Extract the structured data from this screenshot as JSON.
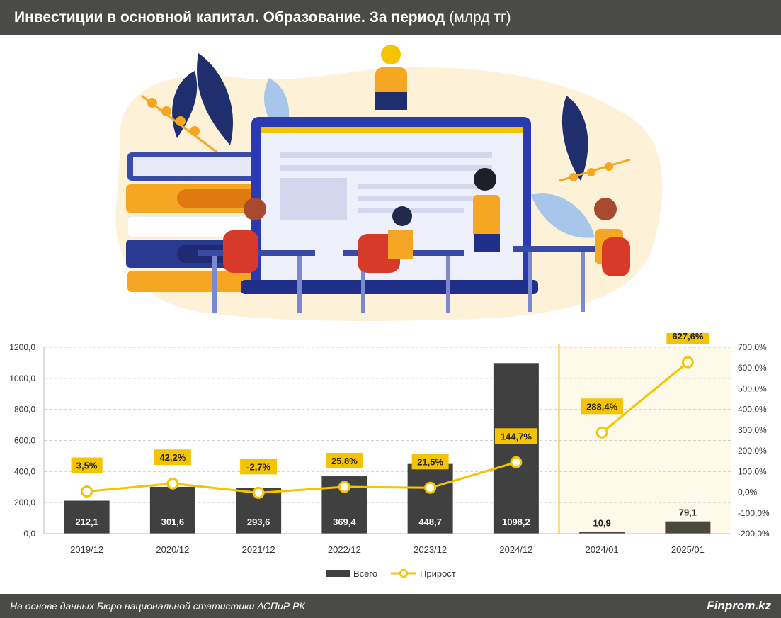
{
  "title": {
    "main": "Инвестиции в основной капитал. Образование. За период",
    "unit": "(млрд тг)"
  },
  "footer": {
    "source": "На основе данных Бюро национальной статистики АСПиР РК",
    "brand": "Finprom.kz"
  },
  "colors": {
    "bar": "#404040",
    "bar_ytd": "#4a4a3c",
    "line": "#f5c400",
    "label_bg": "#f5c400",
    "highlight_bg": "#fdfaea",
    "divider": "#f5c400",
    "header_bg": "#4a4a48"
  },
  "chart_data": {
    "type": "bar",
    "categories": [
      "2019/12",
      "2020/12",
      "2021/12",
      "2022/12",
      "2023/12",
      "2024/12",
      "2024/01",
      "2025/01"
    ],
    "series": [
      {
        "name": "Всего",
        "type": "bar",
        "axis": "left",
        "values": [
          212.1,
          301.6,
          293.6,
          369.4,
          448.7,
          1098.2,
          10.9,
          79.1
        ],
        "labels": [
          "212,1",
          "301,6",
          "293,6",
          "369,4",
          "448,7",
          "1098,2",
          "10,9",
          "79,1"
        ]
      },
      {
        "name": "Прирост",
        "type": "line",
        "axis": "right",
        "values": [
          3.5,
          42.2,
          -2.7,
          25.8,
          21.5,
          144.7,
          288.4,
          627.6
        ],
        "labels": [
          "3,5%",
          "42,2%",
          "-2,7%",
          "25,8%",
          "21,5%",
          "144,7%",
          "288,4%",
          "627,6%"
        ],
        "segments": [
          [
            0,
            5
          ],
          [
            6,
            7
          ]
        ]
      }
    ],
    "ylim_left": [
      0,
      1200
    ],
    "yticks_left": [
      "0,0",
      "200,0",
      "400,0",
      "600,0",
      "800,0",
      "1000,0",
      "1200,0"
    ],
    "ylim_right": [
      -200,
      700
    ],
    "yticks_right": [
      "-200,0%",
      "-100,0%",
      "0,0%",
      "100,0%",
      "200,0%",
      "300,0%",
      "400,0%",
      "500,0%",
      "600,0%",
      "700,0%"
    ],
    "grid": true,
    "highlighted_categories": [
      "2024/01",
      "2025/01"
    ],
    "legend": {
      "position": "bottom",
      "items": [
        "Всего",
        "Прирост"
      ]
    }
  }
}
